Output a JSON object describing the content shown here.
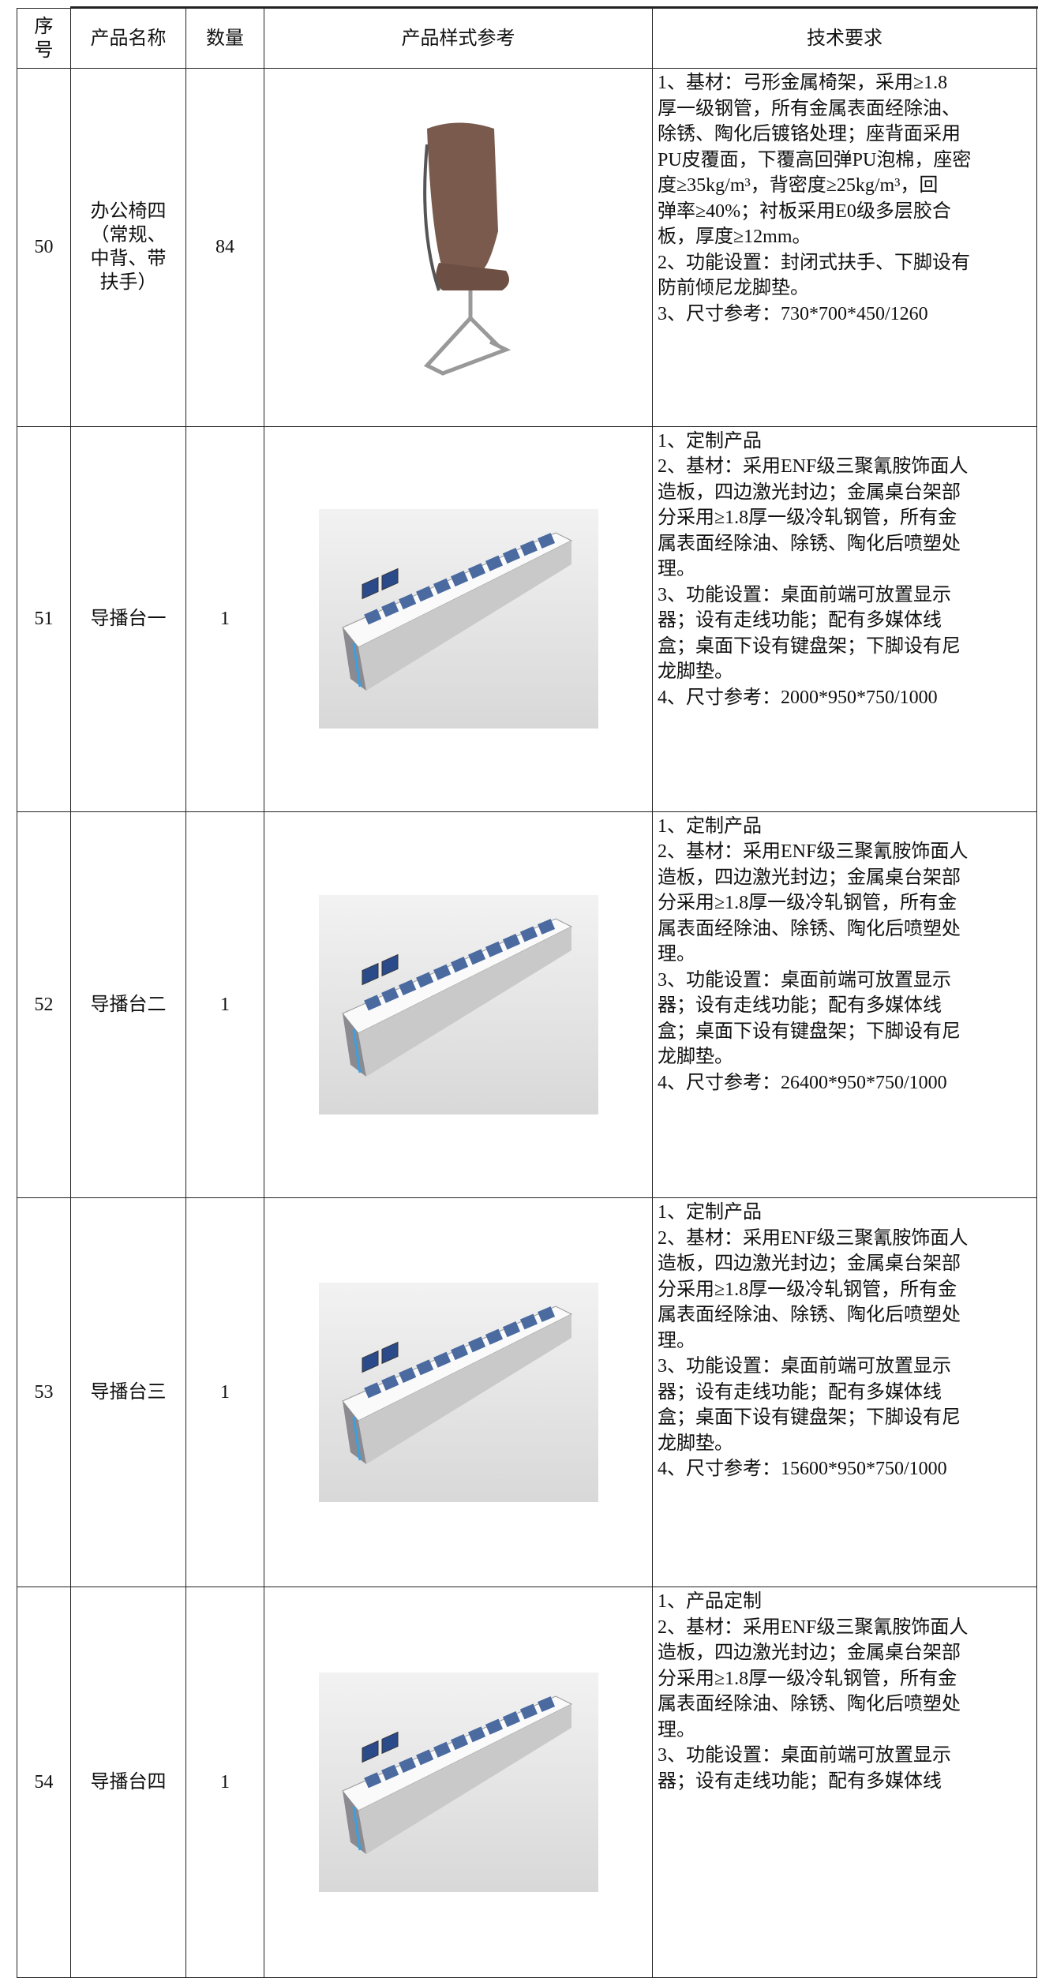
{
  "table": {
    "header": [
      "序号",
      "产品名称",
      "数量",
      "产品样式参考",
      "技术要求"
    ],
    "rows": [
      {
        "no": "50",
        "name_lines": [
          "办公椅四",
          "（常规、",
          "中背、带",
          "扶手）"
        ],
        "qty": "84",
        "spec": [
          "1、基材：弓形金属椅架，采用≥1.8",
          "厚一级钢管，所有金属表面经除油、",
          "除锈、陶化后镀铬处理；座背面采用",
          "PU皮覆面，下覆高回弹PU泡棉，座密",
          "度≥35kg/m³，背密度≥25kg/m³，回",
          "弹率≥40%；衬板采用E0级多层胶合",
          "板，厚度≥12mm。",
          "2、功能设置：封闭式扶手、下脚设有",
          "防前倾尼龙脚垫。",
          "3、尺寸参考：730*700*450/1260"
        ]
      },
      {
        "no": "51",
        "name_lines": [
          "导播台一"
        ],
        "qty": "1",
        "spec": [
          "1、定制产品",
          "2、基材：采用ENF级三聚氰胺饰面人",
          "造板，四边激光封边；金属桌台架部",
          "分采用≥1.8厚一级冷轧钢管，所有金",
          "属表面经除油、除锈、陶化后喷塑处",
          "理。",
          "3、功能设置：桌面前端可放置显示",
          "器；设有走线功能；配有多媒体线",
          "盒；桌面下设有键盘架；下脚设有尼",
          "龙脚垫。",
          "4、尺寸参考：2000*950*750/1000"
        ]
      },
      {
        "no": "52",
        "name_lines": [
          "导播台二"
        ],
        "qty": "1",
        "spec": [
          "1、定制产品",
          "2、基材：采用ENF级三聚氰胺饰面人",
          "造板，四边激光封边；金属桌台架部",
          "分采用≥1.8厚一级冷轧钢管，所有金",
          "属表面经除油、除锈、陶化后喷塑处",
          "理。",
          "3、功能设置：桌面前端可放置显示",
          "器；设有走线功能；配有多媒体线",
          "盒；桌面下设有键盘架；下脚设有尼",
          "龙脚垫。",
          "4、尺寸参考：26400*950*750/1000"
        ]
      },
      {
        "no": "53",
        "name_lines": [
          "导播台三"
        ],
        "qty": "1",
        "spec": [
          "1、定制产品",
          "2、基材：采用ENF级三聚氰胺饰面人",
          "造板，四边激光封边；金属桌台架部",
          "分采用≥1.8厚一级冷轧钢管，所有金",
          "属表面经除油、除锈、陶化后喷塑处",
          "理。",
          "3、功能设置：桌面前端可放置显示",
          "器；设有走线功能；配有多媒体线",
          "盒；桌面下设有键盘架；下脚设有尼",
          "龙脚垫。",
          "4、尺寸参考：15600*950*750/1000"
        ]
      },
      {
        "no": "54",
        "name_lines": [
          "导播台四"
        ],
        "qty": "1",
        "spec": [
          "1、产品定制",
          "2、基材：采用ENF级三聚氰胺饰面人",
          "造板，四边激光封边；金属桌台架部",
          "分采用≥1.8厚一级冷轧钢管，所有金",
          "属表面经除油、除锈、陶化后喷塑处",
          "理。",
          "3、功能设置：桌面前端可放置显示",
          "器；设有走线功能；配有多媒体线"
        ]
      }
    ]
  }
}
